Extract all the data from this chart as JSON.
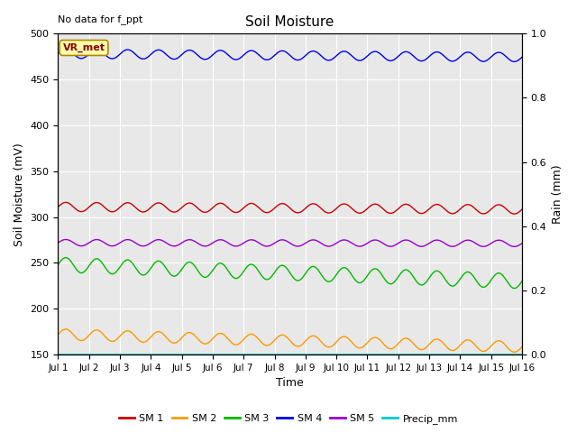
{
  "title": "Soil Moisture",
  "xlabel": "Time",
  "ylabel_left": "Soil Moisture (mV)",
  "ylabel_right": "Rain (mm)",
  "annotation_topleft": "No data for f_ppt",
  "inset_label": "VR_met",
  "ylim_left": [
    150,
    500
  ],
  "ylim_right": [
    0.0,
    1.0
  ],
  "days": 15,
  "points_per_day": 48,
  "series": {
    "SM1": {
      "color": "#cc0000",
      "base": 311,
      "trend": -0.18,
      "amplitude": 5,
      "freq": 1.0,
      "label": "SM 1"
    },
    "SM2": {
      "color": "#ff9900",
      "base": 172,
      "trend": -0.9,
      "amplitude": 6,
      "freq": 1.0,
      "label": "SM 2"
    },
    "SM3": {
      "color": "#00bb00",
      "base": 248,
      "trend": -1.2,
      "amplitude": 8,
      "freq": 1.0,
      "label": "SM 3"
    },
    "SM4": {
      "color": "#0000ee",
      "base": 478,
      "trend": -0.25,
      "amplitude": 5,
      "freq": 1.0,
      "label": "SM 4"
    },
    "SM5": {
      "color": "#9900cc",
      "base": 272,
      "trend": -0.05,
      "amplitude": 3.5,
      "freq": 1.0,
      "label": "SM 5"
    },
    "Precip": {
      "color": "#00cccc",
      "base": 150,
      "trend": 0,
      "amplitude": 0,
      "freq": 0,
      "label": "Precip_mm"
    }
  },
  "bg_color": "#e8e8e8",
  "fig_bg_color": "#ffffff",
  "grid_color": "#ffffff",
  "yticks_left": [
    150,
    200,
    250,
    300,
    350,
    400,
    450,
    500
  ],
  "yticks_right": [
    0.0,
    0.2,
    0.4,
    0.6,
    0.8,
    1.0
  ],
  "tick_label_positions": [
    1,
    2,
    3,
    4,
    5,
    6,
    7,
    8,
    9,
    10,
    11,
    12,
    13,
    14,
    15,
    16
  ],
  "tick_labels": [
    "Jul 1",
    "Jul 2",
    "Jul 3",
    "Jul 4",
    "Jul 5",
    "Jul 6",
    "Jul 7",
    "Jul 8",
    "Jul 9",
    "Jul 10",
    "Jul 11",
    "Jul 12",
    "Jul 13",
    "Jul 14",
    "Jul 15",
    "Jul 16"
  ],
  "xlim": [
    1,
    16
  ]
}
